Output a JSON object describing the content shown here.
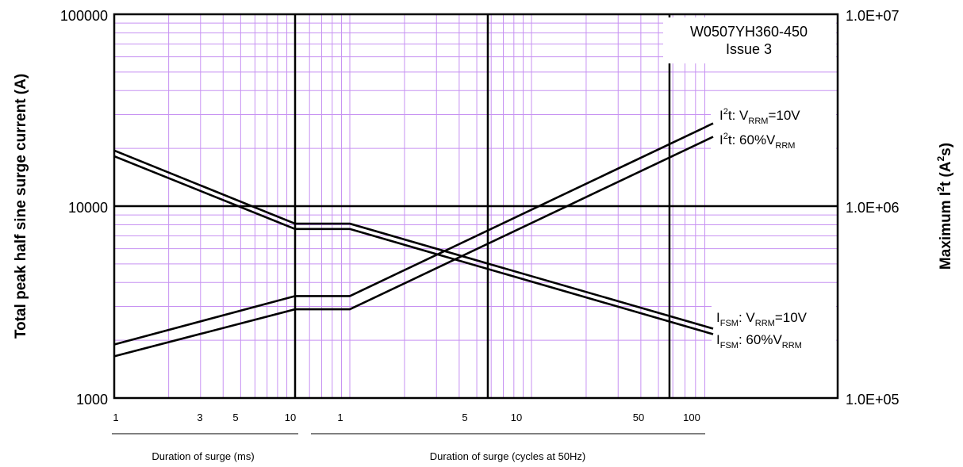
{
  "chart_data": {
    "type": "line",
    "title": "W0507YH360-450",
    "subtitle": "Issue 3",
    "ylabel_left": "Total peak half sine surge current (A)",
    "ylabel_right_main": "Maximum I",
    "ylabel_right_sup1": "2",
    "ylabel_right_mid": "t (A",
    "ylabel_right_sup2": "2",
    "ylabel_right_end": "s)",
    "xlabel_ms": "Duration of surge (ms)",
    "xlabel_cycles": "Duration of surge (cycles at 50Hz)",
    "y_left_scale": "log",
    "y_left_range": [
      1000,
      100000
    ],
    "y_left_ticks": [
      "100000",
      "10000",
      "1000"
    ],
    "y_right_scale": "log",
    "y_right_range": [
      100000,
      10000000
    ],
    "y_right_ticks": [
      "1.0E+07",
      "1.0E+06",
      "1.0E+05"
    ],
    "x_ms_scale": "log",
    "x_ms_range": [
      1,
      10
    ],
    "x_ms_ticks": [
      "1",
      "3",
      "5",
      "10"
    ],
    "x_cycles_scale": "log",
    "x_cycles_range": [
      0.5,
      100
    ],
    "x_cycles_ticks": [
      "1",
      "5",
      "10",
      "50",
      "100"
    ],
    "grid": true,
    "series": [
      {
        "name": "I2t: VRRM=10V",
        "axis": "right",
        "x_ms": [
          1,
          10
        ],
        "x_cycles": [
          0.5,
          1,
          100
        ],
        "values_ms": [
          190000,
          340000
        ],
        "values_cycles": [
          340000,
          340000,
          2700000
        ]
      },
      {
        "name": "I2t: 60%VRRM",
        "axis": "right",
        "x_ms": [
          1,
          10
        ],
        "x_cycles": [
          0.5,
          1,
          100
        ],
        "values_ms": [
          165000,
          290000
        ],
        "values_cycles": [
          290000,
          290000,
          2300000
        ]
      },
      {
        "name": "IFSM: VRRM=10V",
        "axis": "left",
        "x_ms": [
          1,
          10
        ],
        "x_cycles": [
          0.5,
          1,
          100
        ],
        "values_ms": [
          19500,
          8100
        ],
        "values_cycles": [
          8100,
          8100,
          2300
        ]
      },
      {
        "name": "IFSM: 60%VRRM",
        "axis": "left",
        "x_ms": [
          1,
          10
        ],
        "x_cycles": [
          0.5,
          1,
          100
        ],
        "values_ms": [
          18200,
          7600
        ],
        "values_cycles": [
          7600,
          7600,
          2150
        ]
      }
    ],
    "annotations": {
      "i2t_a": {
        "p1": "I",
        "s1": "2",
        "p2": "t: V",
        "s2": "RRM",
        "p3": "=10V"
      },
      "i2t_b": {
        "p1": "I",
        "s1": "2",
        "p2": "t: 60%V",
        "s2": "RRM",
        "p3": ""
      },
      "ifsm_a": {
        "p1": "I",
        "s1": "FSM",
        "p2": ": V",
        "s2": "RRM",
        "p3": "=10V"
      },
      "ifsm_b": {
        "p1": "I",
        "s1": "FSM",
        "p2": ": 60%V",
        "s2": "RRM",
        "p3": ""
      }
    }
  }
}
